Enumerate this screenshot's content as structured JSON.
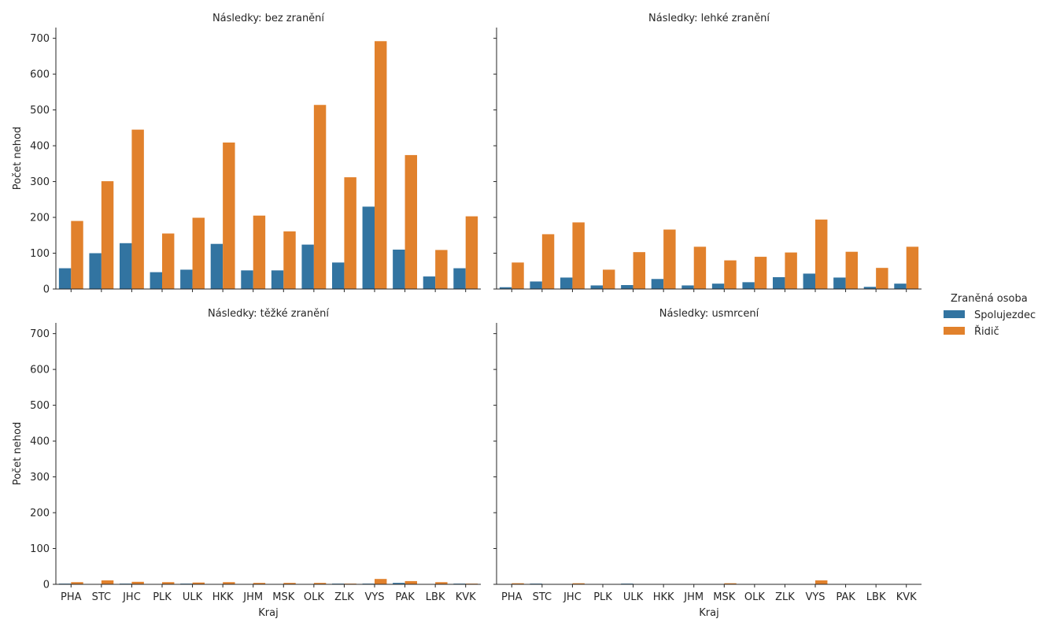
{
  "chart_data": {
    "type": "bar",
    "facet_prefix": "Následky: ",
    "xlabel": "Kraj",
    "ylabel": "Počet nehod",
    "ylim": [
      0,
      730
    ],
    "yticks": [
      0,
      100,
      200,
      300,
      400,
      500,
      600,
      700
    ],
    "categories": [
      "PHA",
      "STC",
      "JHC",
      "PLK",
      "ULK",
      "HKK",
      "JHM",
      "MSK",
      "OLK",
      "ZLK",
      "VYS",
      "PAK",
      "LBK",
      "KVK"
    ],
    "legend": {
      "title": "Zraněná osoba",
      "placement": "right",
      "entries": [
        "Spolujezdec",
        "Řidič"
      ]
    },
    "colors": {
      "Spolujezdec": "#3274a1",
      "Řidič": "#e1812c"
    },
    "panels": [
      {
        "title": "Následky: bez zranění",
        "series": [
          {
            "name": "Spolujezdec",
            "values": [
              58,
              100,
              128,
              47,
              54,
              126,
              52,
              52,
              124,
              74,
              230,
              110,
              35,
              58
            ]
          },
          {
            "name": "Řidič",
            "values": [
              190,
              301,
              445,
              155,
              199,
              409,
              205,
              161,
              514,
              312,
              692,
              374,
              109,
              203
            ]
          }
        ]
      },
      {
        "title": "Následky: lehké zranění",
        "series": [
          {
            "name": "Spolujezdec",
            "values": [
              5,
              21,
              32,
              10,
              11,
              28,
              10,
              15,
              19,
              33,
              43,
              32,
              6,
              15
            ]
          },
          {
            "name": "Řidič",
            "values": [
              74,
              153,
              186,
              54,
              103,
              166,
              118,
              80,
              90,
              102,
              194,
              104,
              59,
              118
            ]
          }
        ]
      },
      {
        "title": "Následky: těžké zranění",
        "series": [
          {
            "name": "Spolujezdec",
            "values": [
              2,
              0,
              2,
              0,
              2,
              0,
              0,
              0,
              0,
              2,
              2,
              4,
              0,
              2
            ]
          },
          {
            "name": "Řidič",
            "values": [
              6,
              11,
              7,
              6,
              5,
              6,
              4,
              4,
              4,
              2,
              15,
              9,
              6,
              2
            ]
          }
        ]
      },
      {
        "title": "Následky: usmrcení",
        "series": [
          {
            "name": "Spolujezdec",
            "values": [
              0,
              2,
              1,
              0,
              2,
              0,
              0,
              0,
              0,
              0,
              0,
              0,
              0,
              0
            ]
          },
          {
            "name": "Řidič",
            "values": [
              3,
              0,
              3,
              0,
              1,
              1,
              1,
              3,
              0,
              0,
              11,
              1,
              1,
              0
            ]
          }
        ]
      }
    ]
  }
}
